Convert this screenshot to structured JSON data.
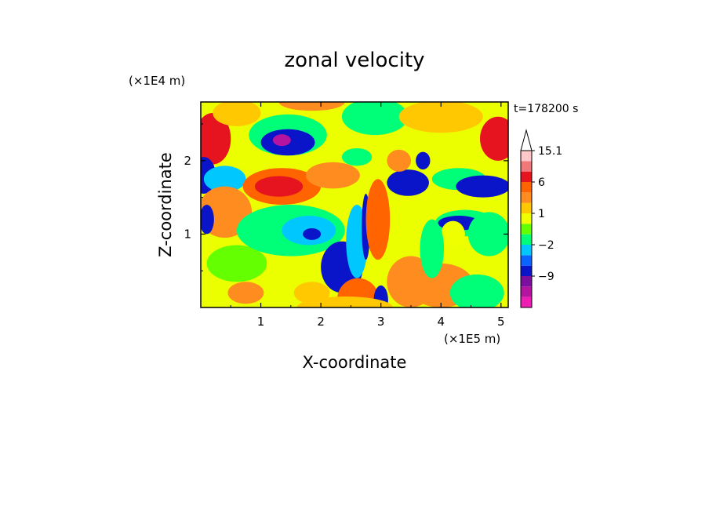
{
  "chart_data": {
    "type": "heatmap",
    "title": "zonal velocity",
    "xlabel": "X-coordinate",
    "ylabel": "Z-coordinate",
    "x_scale_label": "(×1E5 m)",
    "y_scale_label": "(×1E4 m)",
    "time_label": "t=178200 s",
    "xlim": [
      0,
      5.12
    ],
    "ylim": [
      0,
      2.8
    ],
    "x_ticks": [
      1,
      2,
      3,
      4,
      5
    ],
    "x_tick_labels": [
      "1",
      "2",
      "3",
      "4",
      "5"
    ],
    "y_ticks": [
      1,
      2
    ],
    "y_tick_labels": [
      "1",
      "2"
    ],
    "colorbar": {
      "levels": [
        -15,
        -12,
        -9,
        -6,
        -3,
        -2,
        -1,
        0,
        1,
        2,
        4,
        6,
        9,
        12,
        15.1
      ],
      "colors": [
        "#ee1eb4",
        "#b4149f",
        "#7d0f9f",
        "#0a14c8",
        "#0a64ff",
        "#00c8ff",
        "#00ff78",
        "#64ff00",
        "#f0ff00",
        "#ffc800",
        "#ff8c1e",
        "#ff6400",
        "#e6141e",
        "#f07878",
        "#ffc8c8"
      ],
      "labels": [
        {
          "value": 15.1,
          "text": "15.1"
        },
        {
          "value": 6,
          "text": "6"
        },
        {
          "value": 1,
          "text": "1"
        },
        {
          "value": -2,
          "text": "−2"
        },
        {
          "value": -9,
          "text": "−9"
        }
      ],
      "extend_top": true
    },
    "field": {
      "background": "#ebff00",
      "blobs": [
        {
          "x": 0.2,
          "z": 2.3,
          "rx": 0.3,
          "rz": 0.35,
          "v": 7
        },
        {
          "x": 0.05,
          "z": 1.8,
          "rx": 0.2,
          "rz": 0.25,
          "v": -6
        },
        {
          "x": 0.6,
          "z": 2.65,
          "rx": 0.4,
          "rz": 0.18,
          "v": 1.5
        },
        {
          "x": 1.45,
          "z": 2.35,
          "rx": 0.65,
          "rz": 0.28,
          "v": -1
        },
        {
          "x": 1.45,
          "z": 2.25,
          "rx": 0.45,
          "rz": 0.18,
          "v": -6
        },
        {
          "x": 1.35,
          "z": 2.28,
          "rx": 0.15,
          "rz": 0.08,
          "v": -12
        },
        {
          "x": 1.85,
          "z": 2.8,
          "rx": 0.55,
          "rz": 0.12,
          "v": 4
        },
        {
          "x": 2.9,
          "z": 2.6,
          "rx": 0.55,
          "rz": 0.25,
          "v": -1
        },
        {
          "x": 4.0,
          "z": 2.6,
          "rx": 0.7,
          "rz": 0.22,
          "v": 1.5
        },
        {
          "x": 4.95,
          "z": 2.3,
          "rx": 0.3,
          "rz": 0.3,
          "v": 7
        },
        {
          "x": 0.4,
          "z": 1.75,
          "rx": 0.35,
          "rz": 0.18,
          "v": -2
        },
        {
          "x": 1.35,
          "z": 1.65,
          "rx": 0.65,
          "rz": 0.25,
          "v": 5
        },
        {
          "x": 1.3,
          "z": 1.65,
          "rx": 0.4,
          "rz": 0.14,
          "v": 7
        },
        {
          "x": 2.2,
          "z": 1.8,
          "rx": 0.45,
          "rz": 0.18,
          "v": 3
        },
        {
          "x": 3.45,
          "z": 1.7,
          "rx": 0.35,
          "rz": 0.18,
          "v": -6
        },
        {
          "x": 3.7,
          "z": 2.0,
          "rx": 0.12,
          "rz": 0.12,
          "v": -6
        },
        {
          "x": 4.3,
          "z": 1.75,
          "rx": 0.45,
          "rz": 0.15,
          "v": -1
        },
        {
          "x": 4.7,
          "z": 1.65,
          "rx": 0.45,
          "rz": 0.15,
          "v": -6
        },
        {
          "x": 4.4,
          "z": 1.15,
          "rx": 0.5,
          "rz": 0.18,
          "v": -1
        },
        {
          "x": 4.3,
          "z": 1.15,
          "rx": 0.35,
          "rz": 0.1,
          "v": -6
        },
        {
          "x": 4.8,
          "z": 1.0,
          "rx": 0.35,
          "rz": 0.3,
          "v": -1.5
        },
        {
          "x": 0.4,
          "z": 1.3,
          "rx": 0.45,
          "rz": 0.35,
          "v": 3
        },
        {
          "x": 0.1,
          "z": 1.2,
          "rx": 0.12,
          "rz": 0.2,
          "v": -6
        },
        {
          "x": 0.6,
          "z": 0.6,
          "rx": 0.5,
          "rz": 0.25,
          "v": -0.5
        },
        {
          "x": 1.5,
          "z": 1.05,
          "rx": 0.9,
          "rz": 0.35,
          "v": -1.5
        },
        {
          "x": 1.8,
          "z": 1.05,
          "rx": 0.45,
          "rz": 0.2,
          "v": -2.5
        },
        {
          "x": 1.85,
          "z": 1.0,
          "rx": 0.15,
          "rz": 0.08,
          "v": -6
        },
        {
          "x": 2.35,
          "z": 0.55,
          "rx": 0.35,
          "rz": 0.35,
          "v": -6
        },
        {
          "x": 2.6,
          "z": 0.9,
          "rx": 0.18,
          "rz": 0.5,
          "v": -2.5
        },
        {
          "x": 2.75,
          "z": 1.1,
          "rx": 0.07,
          "rz": 0.45,
          "v": -6
        },
        {
          "x": 2.95,
          "z": 1.2,
          "rx": 0.2,
          "rz": 0.55,
          "v": 5
        },
        {
          "x": 2.62,
          "z": 0.1,
          "rx": 0.35,
          "rz": 0.3,
          "v": 5
        },
        {
          "x": 3.0,
          "z": 0.1,
          "rx": 0.12,
          "rz": 0.2,
          "v": -6
        },
        {
          "x": 3.5,
          "z": 0.35,
          "rx": 0.4,
          "rz": 0.35,
          "v": 3
        },
        {
          "x": 2.4,
          "z": 0.0,
          "rx": 0.8,
          "rz": 0.15,
          "v": 2
        },
        {
          "x": 4.0,
          "z": 0.3,
          "rx": 0.55,
          "rz": 0.3,
          "v": 3
        },
        {
          "x": 4.6,
          "z": 0.2,
          "rx": 0.45,
          "rz": 0.25,
          "v": -1
        },
        {
          "x": 4.2,
          "z": 1.0,
          "rx": 0.2,
          "rz": 0.18,
          "v": 1
        },
        {
          "x": 3.85,
          "z": 0.8,
          "rx": 0.2,
          "rz": 0.4,
          "v": -1
        },
        {
          "x": 3.3,
          "z": 2.0,
          "rx": 0.2,
          "rz": 0.15,
          "v": 3
        },
        {
          "x": 2.6,
          "z": 2.05,
          "rx": 0.25,
          "rz": 0.12,
          "v": -1.5
        },
        {
          "x": 0.75,
          "z": 0.2,
          "rx": 0.3,
          "rz": 0.15,
          "v": 3
        },
        {
          "x": 1.85,
          "z": 0.2,
          "rx": 0.3,
          "rz": 0.15,
          "v": 1.5
        }
      ]
    }
  }
}
